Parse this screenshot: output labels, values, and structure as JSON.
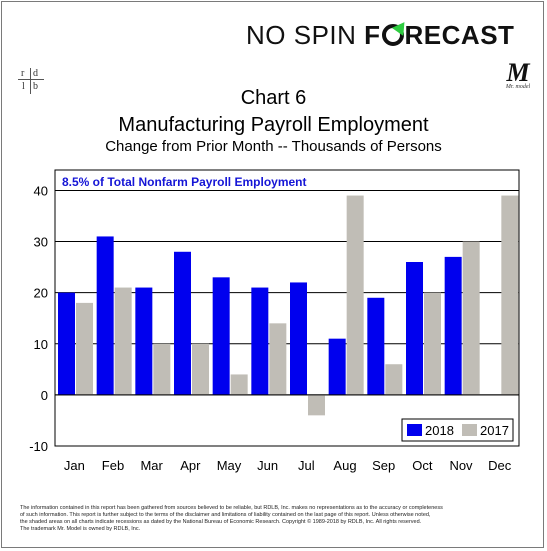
{
  "brand": {
    "part1": "NO SPIN ",
    "part2a": "F",
    "part2b": "RECAST"
  },
  "logo_left": {
    "tl": "r",
    "tr": "d",
    "bl": "l",
    "br": "b"
  },
  "logo_right": {
    "mark": "M",
    "caption": "Mr. model"
  },
  "titles": {
    "line1": "Chart 6",
    "line2": "Manufacturing Payroll Employment",
    "line3": "Change from Prior Month -- Thousands of Persons"
  },
  "colors": {
    "series_2018": "#0000ee",
    "series_2017": "#c0bdb6",
    "annotation": "#1515d6"
  },
  "chart_data": {
    "type": "bar",
    "categories": [
      "Jan",
      "Feb",
      "Mar",
      "Apr",
      "May",
      "Jun",
      "Jul",
      "Aug",
      "Sep",
      "Oct",
      "Nov",
      "Dec"
    ],
    "series": [
      {
        "name": "2018",
        "values": [
          20,
          31,
          21,
          28,
          23,
          21,
          22,
          11,
          19,
          26,
          27,
          null
        ]
      },
      {
        "name": "2017",
        "values": [
          18,
          21,
          10,
          10,
          4,
          14,
          -4,
          39,
          6,
          20,
          30,
          39
        ]
      }
    ],
    "yticks": [
      -10,
      0,
      10,
      20,
      30,
      40
    ],
    "ylim": [
      -10,
      44
    ],
    "annotation": "8.5% of Total Nonfarm Payroll Employment",
    "legend_position": "bottom-right",
    "grid": true
  },
  "disclaimer": {
    "line1": "The information contained in this report has been gathered from sources believed to be reliable, but RDLB, Inc. makes no representations as to the accuracy or completeness",
    "line2": "of such information. This report is further subject to the terms of the disclaimer and limitations of liability contained on the last page of this report. Unless otherwise noted,",
    "line3": "the shaded areas on all charts indicate recessions as dated by the National Bureau of Economic Research. Copyright © 1989-2018 by RDLB, Inc. All rights reserved.",
    "line4": "The trademark Mr. Model is owned by RDLB, Inc."
  }
}
